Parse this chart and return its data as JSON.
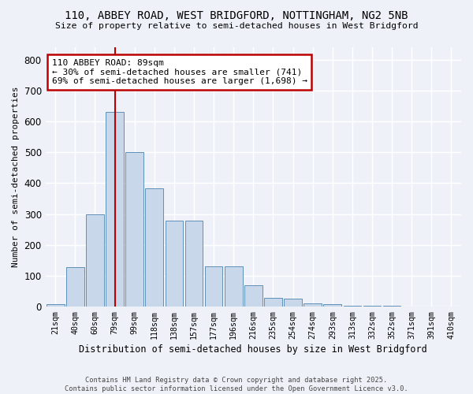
{
  "title_line1": "110, ABBEY ROAD, WEST BRIDGFORD, NOTTINGHAM, NG2 5NB",
  "title_line2": "Size of property relative to semi-detached houses in West Bridgford",
  "xlabel": "Distribution of semi-detached houses by size in West Bridgford",
  "ylabel": "Number of semi-detached properties",
  "bar_color": "#c8d8ea",
  "bar_edge_color": "#6090b8",
  "categories": [
    "21sqm",
    "40sqm",
    "60sqm",
    "79sqm",
    "99sqm",
    "118sqm",
    "138sqm",
    "157sqm",
    "177sqm",
    "196sqm",
    "216sqm",
    "235sqm",
    "254sqm",
    "274sqm",
    "293sqm",
    "313sqm",
    "332sqm",
    "352sqm",
    "371sqm",
    "391sqm",
    "410sqm"
  ],
  "values": [
    8,
    128,
    300,
    630,
    500,
    383,
    278,
    278,
    130,
    130,
    70,
    28,
    25,
    11,
    7,
    4,
    3,
    2,
    1,
    1,
    1
  ],
  "ylim": [
    0,
    840
  ],
  "yticks": [
    0,
    100,
    200,
    300,
    400,
    500,
    600,
    700,
    800
  ],
  "property_bin_index": 3,
  "annotation_line1": "110 ABBEY ROAD: 89sqm",
  "annotation_line2": "← 30% of semi-detached houses are smaller (741)",
  "annotation_line3": "69% of semi-detached houses are larger (1,698) →",
  "annotation_box_color": "#ffffff",
  "annotation_box_edge_color": "#bb0000",
  "vline_color": "#bb0000",
  "footer_text": "Contains HM Land Registry data © Crown copyright and database right 2025.\nContains public sector information licensed under the Open Government Licence v3.0.",
  "background_color": "#eef2f8",
  "plot_background_color": "#eef2f8",
  "grid_color": "#ffffff"
}
